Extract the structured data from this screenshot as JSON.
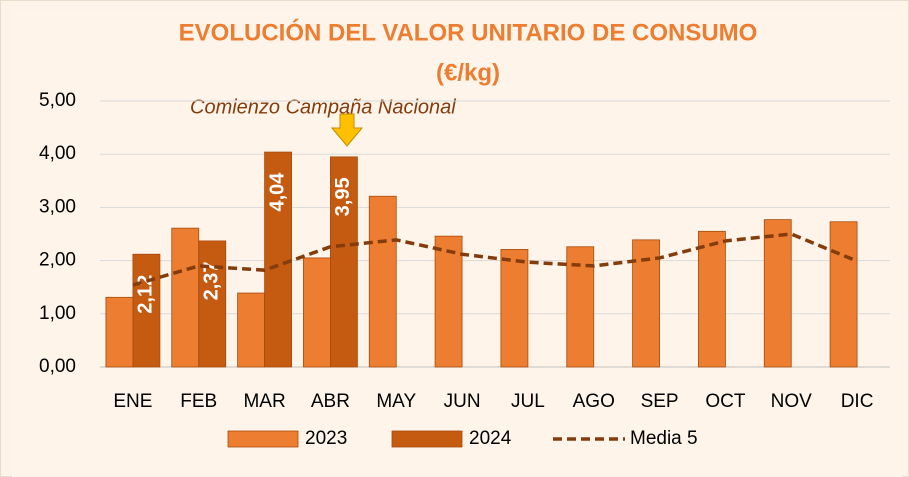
{
  "chart_data": {
    "type": "bar",
    "title": [
      "EVOLUCIÓN DEL VALOR UNITARIO DE CONSUMO",
      "(€/kg)"
    ],
    "annotation": "Comienzo Campaña Nacional",
    "categories": [
      "ENE",
      "FEB",
      "MAR",
      "ABR",
      "MAY",
      "JUN",
      "JUL",
      "AGO",
      "SEP",
      "OCT",
      "NOV",
      "DIC"
    ],
    "series": [
      {
        "name": "2023",
        "type": "bar",
        "color": "#ed7d31",
        "values": [
          1.31,
          2.61,
          1.39,
          2.05,
          3.21,
          2.46,
          2.21,
          2.26,
          2.39,
          2.55,
          2.77,
          2.73
        ]
      },
      {
        "name": "2024",
        "type": "bar",
        "color": "#c55a11",
        "values": [
          2.12,
          2.37,
          4.04,
          3.95,
          null,
          null,
          null,
          null,
          null,
          null,
          null,
          null
        ],
        "value_labels": [
          "2,12",
          "2,37",
          "4,04",
          "3,95",
          null,
          null,
          null,
          null,
          null,
          null,
          null,
          null
        ]
      },
      {
        "name": "Media 5",
        "type": "line",
        "color": "#843c0c",
        "values": [
          1.54,
          1.9,
          1.82,
          2.26,
          2.39,
          2.12,
          1.97,
          1.9,
          2.05,
          2.37,
          2.5,
          1.99
        ]
      }
    ],
    "ylim": [
      0,
      5
    ],
    "yticks": [
      {
        "value": 0,
        "label": "0,00"
      },
      {
        "value": 1,
        "label": "1,00"
      },
      {
        "value": 2,
        "label": "2,00"
      },
      {
        "value": 3,
        "label": "3,00"
      },
      {
        "value": 4,
        "label": "4,00"
      },
      {
        "value": 5,
        "label": "5,00"
      }
    ],
    "grid": true,
    "legend": "bottom"
  }
}
